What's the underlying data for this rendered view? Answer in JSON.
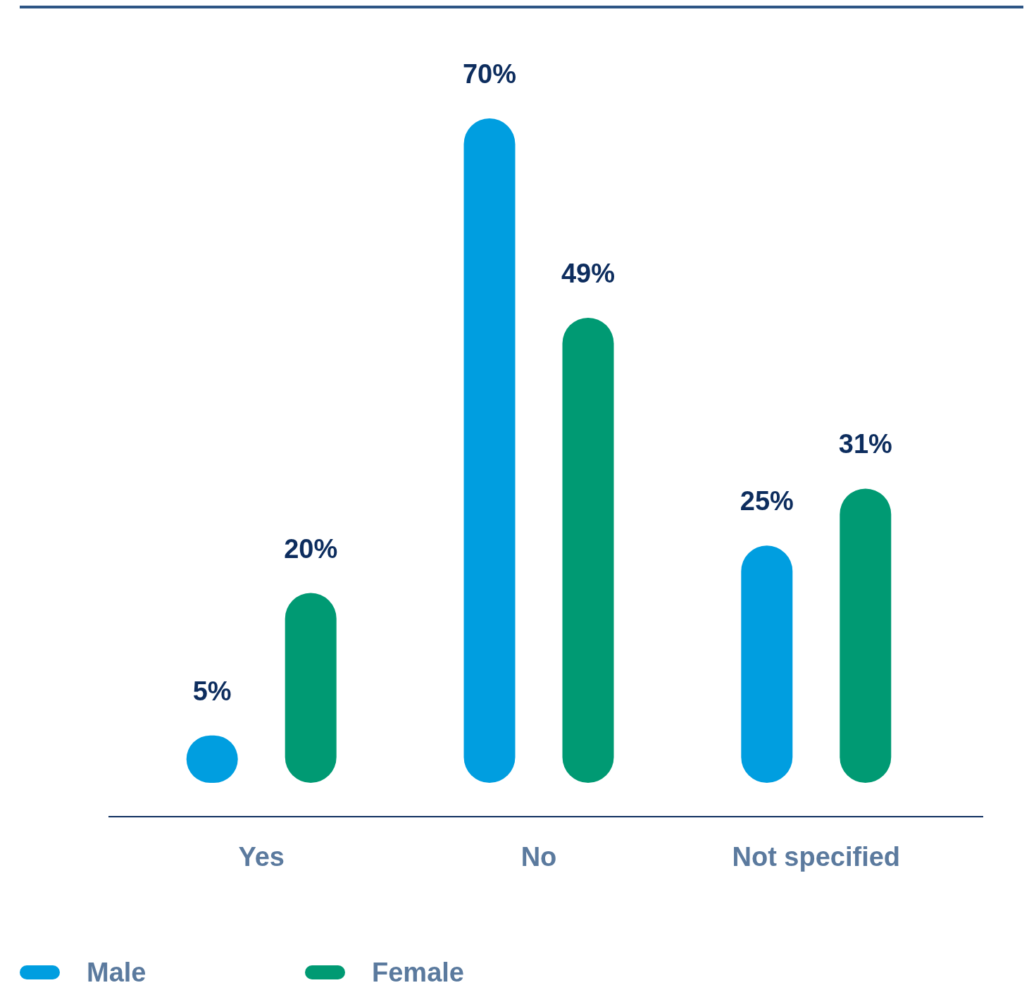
{
  "chart_data": {
    "type": "bar",
    "categories": [
      "Yes",
      "No",
      "Not specified"
    ],
    "series": [
      {
        "name": "Male",
        "color": "#009ee0",
        "values": [
          5,
          70,
          25
        ],
        "value_labels": [
          "5%",
          "70%",
          "25%"
        ]
      },
      {
        "name": "Female",
        "color": "#009a73",
        "values": [
          20,
          49,
          31
        ],
        "value_labels": [
          "20%",
          "49%",
          "31%"
        ]
      }
    ],
    "legend": "bottom left",
    "grid": false
  }
}
